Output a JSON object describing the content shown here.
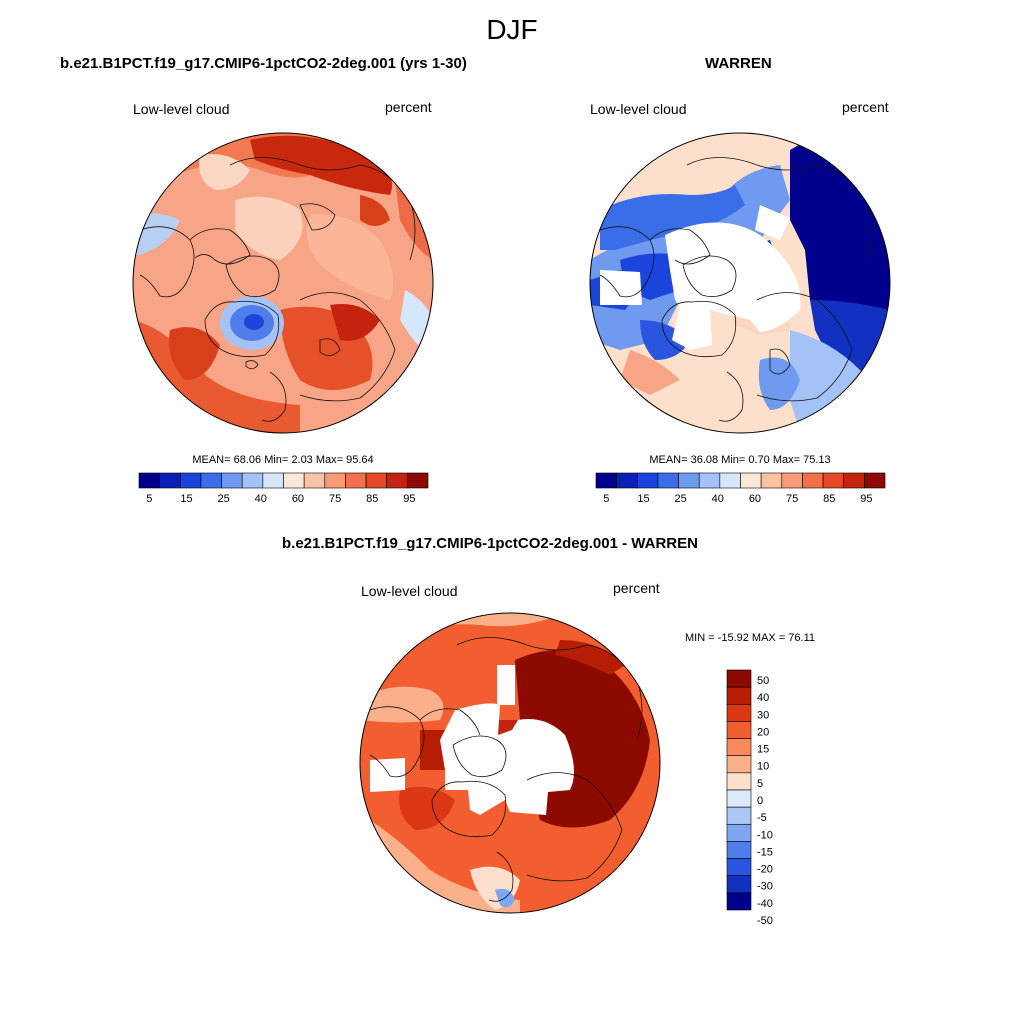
{
  "figure": {
    "title": "DJF"
  },
  "panels": [
    {
      "title": "b.e21.B1PCT.f19_g17.CMIP6-1pctCO2-2deg.001 (yrs 1-30)",
      "left_label": "Low-level cloud",
      "right_label": "percent",
      "stats": {
        "mean": "68.06",
        "min": "2.03",
        "max": "95.64"
      }
    },
    {
      "title": "WARREN",
      "left_label": "Low-level cloud",
      "right_label": "percent",
      "stats": {
        "mean": "36.08",
        "min": "0.70",
        "max": "75.13"
      }
    },
    {
      "title": "b.e21.B1PCT.f19_g17.CMIP6-1pctCO2-2deg.001 - WARREN",
      "left_label": "Low-level cloud",
      "right_label": "percent",
      "stats": {
        "min": "-15.92",
        "max": "76.11"
      }
    }
  ],
  "colorbar_abs": {
    "colors": [
      "#00008c",
      "#0a1fb8",
      "#1a44db",
      "#3a6ee8",
      "#6f9af0",
      "#a4c2f6",
      "#d6e6fb",
      "#fde7d9",
      "#fbc3a6",
      "#f89c78",
      "#f2704c",
      "#e44826",
      "#c4230f",
      "#8c0a00"
    ],
    "labels": [
      "5",
      "15",
      "25",
      "40",
      "60",
      "75",
      "85",
      "95"
    ]
  },
  "colorbar_diff": {
    "colors": [
      "#8c0a00",
      "#b51e05",
      "#dc3815",
      "#f25e30",
      "#f88a5e",
      "#fbb08c",
      "#fde0cc",
      "#dce9fb",
      "#aac7f6",
      "#7ea6f1",
      "#4f7eea",
      "#2a55de",
      "#1231c0",
      "#00008c"
    ],
    "labels": [
      "50",
      "40",
      "30",
      "20",
      "15",
      "10",
      "5",
      "0",
      "-5",
      "-10",
      "-15",
      "-20",
      "-30",
      "-40",
      "-50"
    ]
  }
}
